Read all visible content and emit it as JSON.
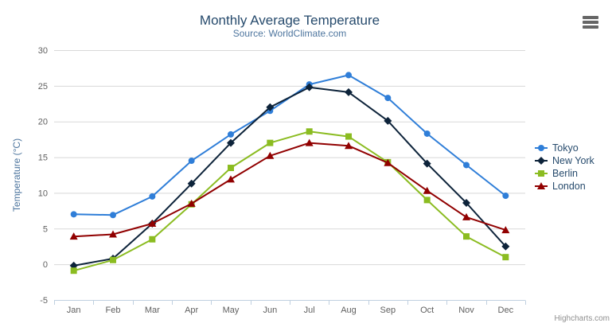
{
  "chart_data": {
    "type": "line",
    "title": "Monthly Average Temperature",
    "subtitle": "Source: WorldClimate.com",
    "xlabel": "",
    "ylabel": "Temperature (°C)",
    "ylim": [
      -5,
      30
    ],
    "ytick_step": 5,
    "grid": true,
    "legend_position": "right",
    "categories": [
      "Jan",
      "Feb",
      "Mar",
      "Apr",
      "May",
      "Jun",
      "Jul",
      "Aug",
      "Sep",
      "Oct",
      "Nov",
      "Dec"
    ],
    "yticks": [
      -5,
      0,
      5,
      10,
      15,
      20,
      25,
      30
    ],
    "series": [
      {
        "name": "Tokyo",
        "color": "#2f7ed8",
        "marker": "circle",
        "values": [
          7.0,
          6.9,
          9.5,
          14.5,
          18.2,
          21.5,
          25.2,
          26.5,
          23.3,
          18.3,
          13.9,
          9.6
        ]
      },
      {
        "name": "New York",
        "color": "#0d233a",
        "marker": "diamond",
        "values": [
          -0.2,
          0.8,
          5.7,
          11.3,
          17.0,
          22.0,
          24.8,
          24.1,
          20.1,
          14.1,
          8.6,
          2.5
        ]
      },
      {
        "name": "Berlin",
        "color": "#8bbc21",
        "marker": "square",
        "values": [
          -0.9,
          0.6,
          3.5,
          8.4,
          13.5,
          17.0,
          18.6,
          17.9,
          14.3,
          9.0,
          3.9,
          1.0
        ]
      },
      {
        "name": "London",
        "color": "#910000",
        "marker": "triangle",
        "values": [
          3.9,
          4.2,
          5.7,
          8.5,
          11.9,
          15.2,
          17.0,
          16.6,
          14.2,
          10.3,
          6.6,
          4.8
        ]
      }
    ]
  },
  "colors": {
    "grid_line": "#d8d8d8",
    "axis_line": "#c0d0e0",
    "tick": "#c0d0e0",
    "title": "#274b6d",
    "subtitle": "#4d759e",
    "axis_label": "#606060",
    "legend_text": "#274b6d",
    "credit_text": "#909090",
    "menu_icon": "#666666"
  },
  "icons": {
    "export_menu": "hamburger-menu"
  },
  "credits": {
    "label": "Highcharts.com"
  }
}
